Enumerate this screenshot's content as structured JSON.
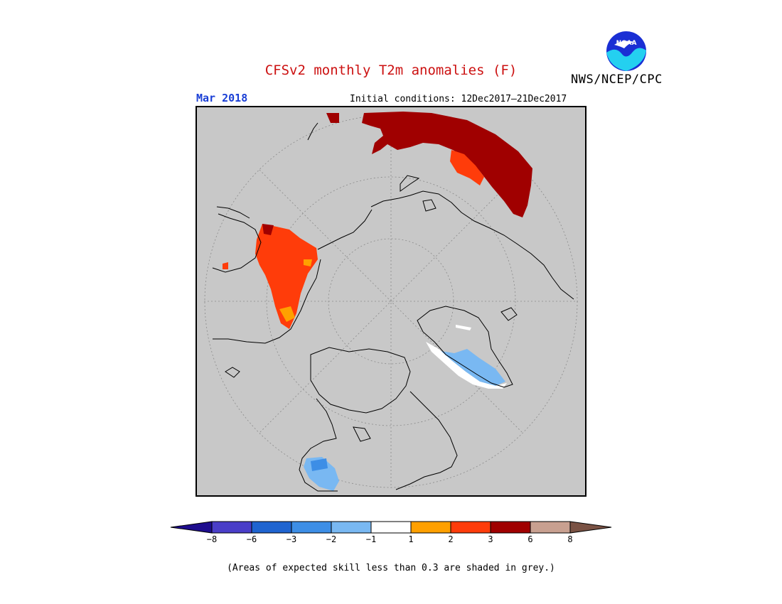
{
  "header": {
    "title": "CFSv2 monthly T2m anomalies (F)",
    "agency": "NWS/NCEP/CPC",
    "logo_text": "NOAA",
    "month": "Mar 2018",
    "initial_conditions": "Initial conditions: 12Dec2017–21Dec2017"
  },
  "legend": {
    "units": "F",
    "colors": [
      "#1e0d8e",
      "#4a3ec8",
      "#1f64d0",
      "#3d8ee6",
      "#79b8f2",
      "#ffffff",
      "#ffa000",
      "#ff3c0a",
      "#a00000",
      "#c8a090",
      "#7a5244"
    ],
    "tick_labels": [
      "−8",
      "−6",
      "−3",
      "−2",
      "−1",
      "1",
      "2",
      "3",
      "6",
      "8"
    ]
  },
  "map": {
    "projection": "north polar stereographic",
    "background_color": "#c8c8c8",
    "anomaly_regions": [
      {
        "region": "northern Russia / Siberia",
        "category": "3 to 6",
        "color": "#a00000"
      },
      {
        "region": "western Russia",
        "category": "2 to 3",
        "color": "#ff3c0a"
      },
      {
        "region": "western Alaska / Bering coast",
        "category": "2 to 3",
        "color": "#ff3c0a"
      },
      {
        "region": "central Alaska",
        "category": "1 to 2",
        "color": "#ffa000"
      },
      {
        "region": "Greenland",
        "category": "-2 to -1",
        "color": "#79b8f2"
      },
      {
        "region": "southeastern United States",
        "category": "-2 to -1",
        "color": "#79b8f2"
      }
    ]
  },
  "footer": {
    "note": "(Areas of expected skill less than 0.3 are shaded in grey.)"
  }
}
